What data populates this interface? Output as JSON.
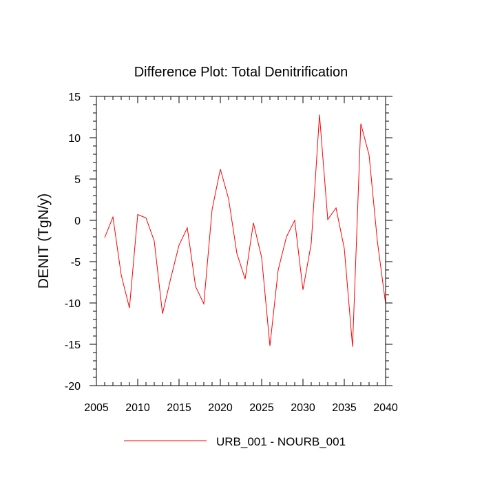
{
  "chart_data": {
    "type": "line",
    "title": "Difference Plot: Total Denitrification",
    "xlabel": "",
    "ylabel": "DENIT  (TgN/y)",
    "xlim": [
      2005,
      2040
    ],
    "ylim": [
      -20,
      15
    ],
    "xticks": [
      2005,
      2010,
      2015,
      2020,
      2025,
      2030,
      2035,
      2040
    ],
    "yticks": [
      15,
      10,
      5,
      0,
      -5,
      -10,
      -15,
      -20
    ],
    "xtick_labels": [
      "2005",
      "2010",
      "2015",
      "2020",
      "2025",
      "2030",
      "2035",
      "2040"
    ],
    "ytick_labels": [
      "15",
      "10",
      "5",
      "0",
      "-5",
      "-10",
      "-15",
      "-20"
    ],
    "grid": false,
    "legend_position": "bottom-center",
    "series": [
      {
        "name": "URB_001 - NOURB_001",
        "color": "#ff0000",
        "x": [
          2006,
          2007,
          2008,
          2009,
          2010,
          2011,
          2012,
          2013,
          2014,
          2015,
          2016,
          2017,
          2018,
          2019,
          2020,
          2021,
          2022,
          2023,
          2024,
          2025,
          2026,
          2027,
          2028,
          2029,
          2030,
          2031,
          2032,
          2033,
          2034,
          2035,
          2036,
          2037,
          2038,
          2039,
          2040
        ],
        "y": [
          -2.1,
          0.4,
          -6.6,
          -10.6,
          0.7,
          0.3,
          -2.5,
          -11.3,
          -7.0,
          -3.0,
          -0.9,
          -8.0,
          -10.1,
          1.3,
          6.2,
          2.6,
          -4.0,
          -7.1,
          -0.3,
          -4.5,
          -15.2,
          -6.0,
          -2.0,
          0.0,
          -8.4,
          -2.8,
          12.8,
          0.1,
          1.5,
          -3.4,
          -15.3,
          11.7,
          7.9,
          -2.5,
          -10.1
        ]
      }
    ]
  }
}
